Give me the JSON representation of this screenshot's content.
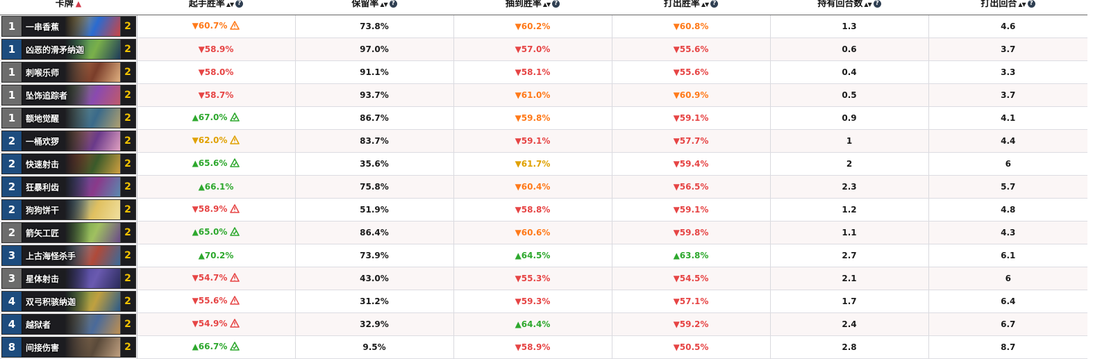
{
  "columns": [
    {
      "label": "卡牌",
      "sort": "asc",
      "help": false
    },
    {
      "label": "起手胜率",
      "sort": "both",
      "help": true
    },
    {
      "label": "保留率",
      "sort": "both",
      "help": true
    },
    {
      "label": "抽到胜率",
      "sort": "both",
      "help": true
    },
    {
      "label": "打出胜率",
      "sort": "both",
      "help": true
    },
    {
      "label": "持有回合数",
      "sort": "both",
      "help": true
    },
    {
      "label": "打出回合",
      "sort": "both",
      "help": true
    }
  ],
  "colors": {
    "orange": "#ff7a1a",
    "red": "#e64545",
    "gold": "#e0a100",
    "green": "#2ea82e"
  },
  "rows": [
    {
      "cost": "1",
      "name": "一串香蕉",
      "count": "2",
      "art": [
        "#f0b020",
        "#2a6bd1",
        "#c44"
      ],
      "mull": {
        "text": "▼60.7%",
        "c": "orange",
        "icon": "warn"
      },
      "keep": "73.8%",
      "drawn": {
        "text": "▼60.2%",
        "c": "orange"
      },
      "played": {
        "text": "▼60.8%",
        "c": "orange"
      },
      "held": "1.3",
      "turn": "4.6"
    },
    {
      "cost": "1",
      "name": "凶恶的滑矛纳迦",
      "count": "2",
      "art": [
        "#2f7d6b",
        "#7ab04a",
        "#1d3a5a"
      ],
      "mull": {
        "text": "▼58.9%",
        "c": "red"
      },
      "keep": "97.0%",
      "drawn": {
        "text": "▼57.0%",
        "c": "red"
      },
      "played": {
        "text": "▼55.6%",
        "c": "red"
      },
      "held": "0.6",
      "turn": "3.7"
    },
    {
      "cost": "1",
      "name": "刺喉乐师",
      "count": "2",
      "art": [
        "#c98a5a",
        "#7a3d2a",
        "#e0b080"
      ],
      "mull": {
        "text": "▼58.0%",
        "c": "red"
      },
      "keep": "91.1%",
      "drawn": {
        "text": "▼58.1%",
        "c": "red"
      },
      "played": {
        "text": "▼55.6%",
        "c": "red"
      },
      "held": "0.4",
      "turn": "3.3"
    },
    {
      "cost": "1",
      "name": "坠饰追踪者",
      "count": "2",
      "art": [
        "#5a8a3a",
        "#8a4ab0",
        "#c05a6a"
      ],
      "mull": {
        "text": "▼58.7%",
        "c": "red"
      },
      "keep": "93.7%",
      "drawn": {
        "text": "▼61.0%",
        "c": "orange"
      },
      "played": {
        "text": "▼60.9%",
        "c": "orange"
      },
      "held": "0.5",
      "turn": "3.7"
    },
    {
      "cost": "1",
      "name": "额地觉醒",
      "count": "2",
      "art": [
        "#7a9a8a",
        "#3a6a8a",
        "#b0a070"
      ],
      "mull": {
        "text": "▲67.0%",
        "c": "green",
        "icon": "good"
      },
      "keep": "86.7%",
      "drawn": {
        "text": "▼59.8%",
        "c": "orange"
      },
      "played": {
        "text": "▼59.1%",
        "c": "red"
      },
      "held": "0.9",
      "turn": "4.1"
    },
    {
      "cost": "2",
      "name": "一桶欢猡",
      "count": "2",
      "art": [
        "#b07a3a",
        "#6a3a8a",
        "#e0a0c0"
      ],
      "mull": {
        "text": "▼62.0%",
        "c": "gold",
        "icon": "warn"
      },
      "keep": "83.7%",
      "drawn": {
        "text": "▼59.1%",
        "c": "red"
      },
      "played": {
        "text": "▼57.7%",
        "c": "red"
      },
      "held": "1",
      "turn": "4.4"
    },
    {
      "cost": "2",
      "name": "快速射击",
      "count": "2",
      "art": [
        "#b03a2a",
        "#3a5a2a",
        "#d0a040"
      ],
      "mull": {
        "text": "▲65.6%",
        "c": "green",
        "icon": "good"
      },
      "keep": "35.6%",
      "drawn": {
        "text": "▼61.7%",
        "c": "gold"
      },
      "played": {
        "text": "▼59.4%",
        "c": "red"
      },
      "held": "2",
      "turn": "6"
    },
    {
      "cost": "2",
      "name": "狂暴利齿",
      "count": "2",
      "art": [
        "#3a5a9a",
        "#8a3a8a",
        "#5a8ab0"
      ],
      "mull": {
        "text": "▲66.1%",
        "c": "green"
      },
      "keep": "75.8%",
      "drawn": {
        "text": "▼60.4%",
        "c": "orange"
      },
      "played": {
        "text": "▼56.5%",
        "c": "red"
      },
      "held": "2.3",
      "turn": "5.7"
    },
    {
      "cost": "2",
      "name": "狗狗饼干",
      "count": "2",
      "art": [
        "#3a7ab0",
        "#e0c060",
        "#f0e0a0"
      ],
      "mull": {
        "text": "▼58.9%",
        "c": "red",
        "icon": "warn"
      },
      "keep": "51.9%",
      "drawn": {
        "text": "▼58.8%",
        "c": "red"
      },
      "played": {
        "text": "▼59.1%",
        "c": "red"
      },
      "held": "1.2",
      "turn": "4.8"
    },
    {
      "cost": "2",
      "name": "箭矢工匠",
      "count": "2",
      "art": [
        "#4a8a3a",
        "#a0c060",
        "#6a4a8a"
      ],
      "mull": {
        "text": "▲65.0%",
        "c": "green",
        "icon": "good"
      },
      "keep": "86.4%",
      "drawn": {
        "text": "▼60.6%",
        "c": "orange"
      },
      "played": {
        "text": "▼59.8%",
        "c": "red"
      },
      "held": "1.1",
      "turn": "4.3"
    },
    {
      "cost": "3",
      "name": "上古海怪杀手",
      "count": "2",
      "art": [
        "#6aa0c0",
        "#b04a3a",
        "#3a6a9a"
      ],
      "mull": {
        "text": "▲70.2%",
        "c": "green"
      },
      "keep": "73.9%",
      "drawn": {
        "text": "▲64.5%",
        "c": "green"
      },
      "played": {
        "text": "▲63.8%",
        "c": "green"
      },
      "held": "2.7",
      "turn": "6.1"
    },
    {
      "cost": "3",
      "name": "星体射击",
      "count": "2",
      "art": [
        "#3a3a8a",
        "#6a5ab0",
        "#2a2a5a"
      ],
      "mull": {
        "text": "▼54.7%",
        "c": "red",
        "icon": "warn"
      },
      "keep": "43.0%",
      "drawn": {
        "text": "▼55.3%",
        "c": "red"
      },
      "played": {
        "text": "▼54.5%",
        "c": "red"
      },
      "held": "2.1",
      "turn": "6"
    },
    {
      "cost": "4",
      "name": "双弓积骇纳迦",
      "count": "2",
      "art": [
        "#3a8a4a",
        "#c0a040",
        "#2a5a8a"
      ],
      "mull": {
        "text": "▼55.6%",
        "c": "red",
        "icon": "warn"
      },
      "keep": "31.2%",
      "drawn": {
        "text": "▼59.3%",
        "c": "red"
      },
      "played": {
        "text": "▼57.1%",
        "c": "red"
      },
      "held": "1.7",
      "turn": "6.4"
    },
    {
      "cost": "4",
      "name": "越狱者",
      "count": "2",
      "art": [
        "#8a7a4a",
        "#4a6a9a",
        "#c09050"
      ],
      "mull": {
        "text": "▼54.9%",
        "c": "red",
        "icon": "warn"
      },
      "keep": "32.9%",
      "drawn": {
        "text": "▲64.4%",
        "c": "green"
      },
      "played": {
        "text": "▼59.2%",
        "c": "red"
      },
      "held": "2.4",
      "turn": "6.7"
    },
    {
      "cost": "8",
      "name": "间接伤害",
      "count": "2",
      "art": [
        "#9a7a5a",
        "#5a4a3a",
        "#c0a080"
      ],
      "mull": {
        "text": "▲66.7%",
        "c": "green",
        "icon": "good"
      },
      "keep": "9.5%",
      "drawn": {
        "text": "▼58.9%",
        "c": "red"
      },
      "played": {
        "text": "▼50.5%",
        "c": "red"
      },
      "held": "2.8",
      "turn": "8.7"
    }
  ]
}
